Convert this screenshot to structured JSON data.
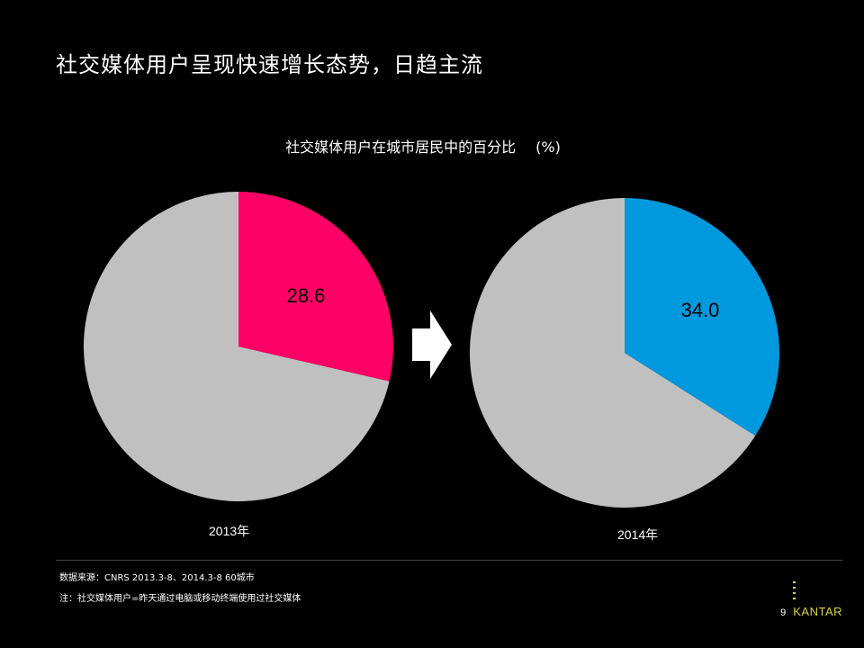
{
  "slide": {
    "title": "社交媒体用户呈现快速增长态势，日趋主流",
    "page_number": "9",
    "brand": "KANTAR",
    "footnote_source": "数据来源：CNRS 2013.3-8、2014.3-8  60城市",
    "footnote_note": "注：社交媒体用户=昨天通过电脑或移动终端使用过社交媒体"
  },
  "colors": {
    "pie_2013_highlight": "#ff0066",
    "pie_2014_highlight": "#0099dd",
    "pie_remainder": "#c0c0c0",
    "arrow": "#ffffff",
    "brand": "#d8d63a"
  },
  "chart_data": {
    "type": "pie",
    "title": "社交媒体用户在城市居民中的百分比",
    "unit": "(%)",
    "pies": [
      {
        "label": "2013年",
        "value": 28.6,
        "value_label": "28.6"
      },
      {
        "label": "2014年",
        "value": 34.0,
        "value_label": "34.0"
      }
    ]
  }
}
